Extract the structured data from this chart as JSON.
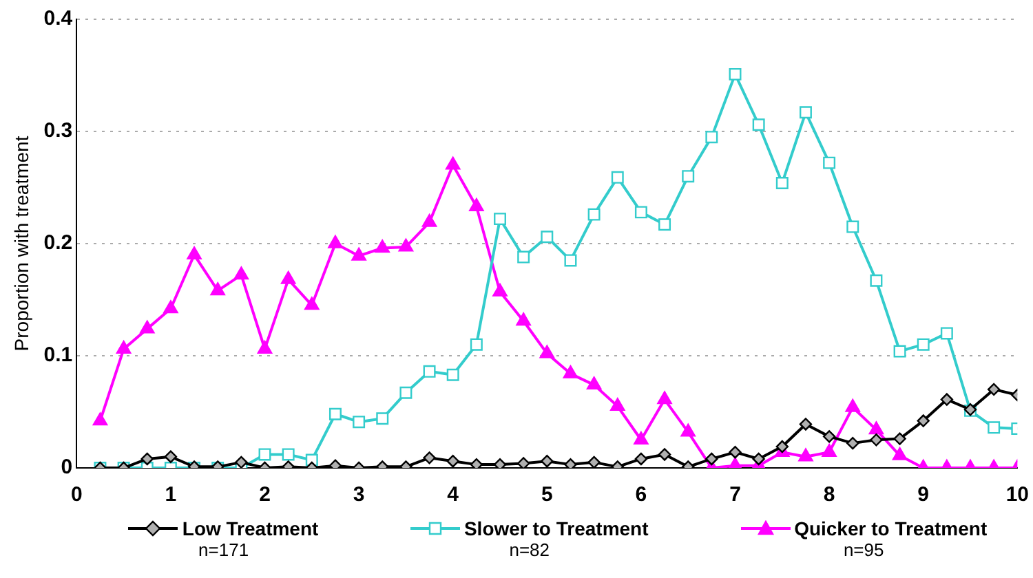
{
  "chart_data": {
    "type": "line",
    "ylabel": "Proportion with treatment",
    "x": [
      0.25,
      0.5,
      0.75,
      1,
      1.25,
      1.5,
      1.75,
      2,
      2.25,
      2.5,
      2.75,
      3,
      3.25,
      3.5,
      3.75,
      4,
      4.25,
      4.5,
      4.75,
      5,
      5.25,
      5.5,
      5.75,
      6,
      6.25,
      6.5,
      6.75,
      7,
      7.25,
      7.5,
      7.75,
      8,
      8.25,
      8.5,
      8.75,
      9,
      9.25,
      9.5,
      9.75,
      10
    ],
    "series": [
      {
        "name": "Low Treatment",
        "color": "#000000",
        "marker": "diamond",
        "values": [
          0,
          0,
          0.008,
          0.01,
          0.001,
          0.001,
          0.005,
          0,
          0.001,
          0,
          0.002,
          0,
          0.001,
          0.001,
          0.009,
          0.006,
          0.003,
          0.003,
          0.004,
          0.006,
          0.003,
          0.005,
          0.001,
          0.008,
          0.012,
          0.001,
          0.008,
          0.014,
          0.008,
          0.019,
          0.039,
          0.028,
          0.022,
          0.025,
          0.026,
          0.042,
          0.061,
          0.052,
          0.07,
          0.065
        ]
      },
      {
        "name": "Slower to Treatment",
        "color": "#33cccc",
        "marker": "square",
        "values": [
          0,
          0,
          0,
          0,
          0,
          0,
          0,
          0.012,
          0.012,
          0.007,
          0.048,
          0.041,
          0.044,
          0.067,
          0.086,
          0.083,
          0.11,
          0.222,
          0.188,
          0.206,
          0.185,
          0.226,
          0.259,
          0.228,
          0.217,
          0.26,
          0.295,
          0.351,
          0.306,
          0.254,
          0.317,
          0.272,
          0.215,
          0.167,
          0.104,
          0.11,
          0.12,
          0.051,
          0.036,
          0.035
        ]
      },
      {
        "name": "Quicker to Treatment",
        "color": "#ff00ff",
        "marker": "triangle",
        "values": [
          0.042,
          0.106,
          0.124,
          0.142,
          0.19,
          0.158,
          0.172,
          0.106,
          0.168,
          0.145,
          0.2,
          0.189,
          0.196,
          0.197,
          0.219,
          0.27,
          0.233,
          0.157,
          0.131,
          0.102,
          0.084,
          0.074,
          0.055,
          0.025,
          0.061,
          0.032,
          0,
          0.002,
          0.002,
          0.014,
          0.01,
          0.014,
          0.054,
          0.034,
          0.011,
          0,
          0,
          0,
          0,
          0
        ]
      }
    ],
    "annotations": [
      "n=171",
      "n=82",
      "n=95"
    ],
    "xlim": [
      0,
      10
    ],
    "xticks": [
      0,
      1,
      2,
      3,
      4,
      5,
      6,
      7,
      8,
      9,
      10
    ],
    "ylim": [
      0,
      0.4
    ],
    "yticks": [
      0,
      0.1,
      0.2,
      0.3,
      0.4
    ],
    "grid": "y",
    "legend": "bottom"
  }
}
